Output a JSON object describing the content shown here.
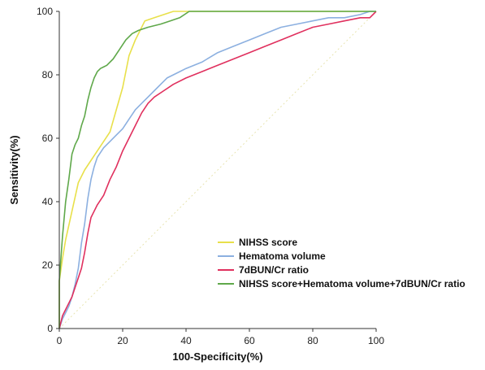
{
  "chart_data": {
    "type": "line",
    "title": "",
    "xlabel": "100-Specificity(%)",
    "ylabel": "Sensitivity(%)",
    "xlim": [
      0,
      100
    ],
    "ylim": [
      0,
      100
    ],
    "xticks": [
      0,
      20,
      40,
      60,
      80,
      100
    ],
    "yticks": [
      0,
      20,
      40,
      60,
      80,
      100
    ],
    "grid": false,
    "legend_position": "bottom-right",
    "reference_line": {
      "style": "dotted",
      "color": "#e8e4b0",
      "x": [
        0,
        100
      ],
      "y": [
        0,
        100
      ]
    },
    "series": [
      {
        "name": "NIHSS score",
        "color": "#e8e04a",
        "x": [
          0,
          0,
          1,
          2,
          4,
          6,
          8,
          12,
          16,
          20,
          22,
          24,
          27,
          30,
          33,
          36,
          40,
          50,
          70,
          100
        ],
        "y": [
          0,
          15,
          22,
          28,
          37,
          46,
          50,
          56,
          62,
          76,
          86,
          91,
          97,
          98,
          99,
          100,
          100,
          100,
          100,
          100
        ]
      },
      {
        "name": "Hematoma volume",
        "color": "#8cb0e0",
        "x": [
          0,
          1,
          2,
          3,
          4,
          5,
          6,
          7,
          8,
          9,
          10,
          11,
          12,
          14,
          16,
          18,
          20,
          22,
          24,
          26,
          28,
          30,
          32,
          34,
          36,
          38,
          40,
          45,
          50,
          55,
          60,
          65,
          70,
          75,
          80,
          85,
          90,
          95,
          98,
          100
        ],
        "y": [
          0,
          3,
          5,
          7,
          10,
          14,
          19,
          27,
          33,
          41,
          47,
          51,
          54,
          57,
          59,
          61,
          63,
          66,
          69,
          71,
          73,
          75,
          77,
          79,
          80,
          81,
          82,
          84,
          87,
          89,
          91,
          93,
          95,
          96,
          97,
          98,
          98,
          99,
          100,
          100
        ]
      },
      {
        "name": "7dBUN/Cr ratio",
        "color": "#e0305e",
        "x": [
          0,
          1,
          2,
          3,
          4,
          5,
          6,
          7,
          8,
          9,
          10,
          11,
          12,
          14,
          16,
          18,
          20,
          22,
          24,
          26,
          28,
          30,
          33,
          36,
          40,
          45,
          50,
          55,
          60,
          65,
          70,
          75,
          80,
          85,
          90,
          95,
          98,
          100
        ],
        "y": [
          0,
          4,
          6,
          8,
          10,
          13,
          16,
          19,
          24,
          30,
          35,
          37,
          39,
          42,
          47,
          51,
          56,
          60,
          64,
          68,
          71,
          73,
          75,
          77,
          79,
          81,
          83,
          85,
          87,
          89,
          91,
          93,
          95,
          96,
          97,
          98,
          98,
          100
        ]
      },
      {
        "name": "NIHSS score+Hematoma volume+7dBUN/Cr ratio",
        "color": "#5fa84a",
        "x": [
          0,
          0,
          1,
          2,
          3,
          4,
          5,
          6,
          7,
          8,
          9,
          10,
          11,
          12,
          13,
          15,
          17,
          19,
          21,
          23,
          25,
          28,
          32,
          35,
          38,
          41,
          50,
          60,
          70,
          80,
          90,
          100
        ],
        "y": [
          0,
          15,
          29,
          40,
          47,
          55,
          58,
          60,
          64,
          67,
          72,
          76,
          79,
          81,
          82,
          83,
          85,
          88,
          91,
          93,
          94,
          95,
          96,
          97,
          98,
          100,
          100,
          100,
          100,
          100,
          100,
          100
        ]
      }
    ]
  }
}
